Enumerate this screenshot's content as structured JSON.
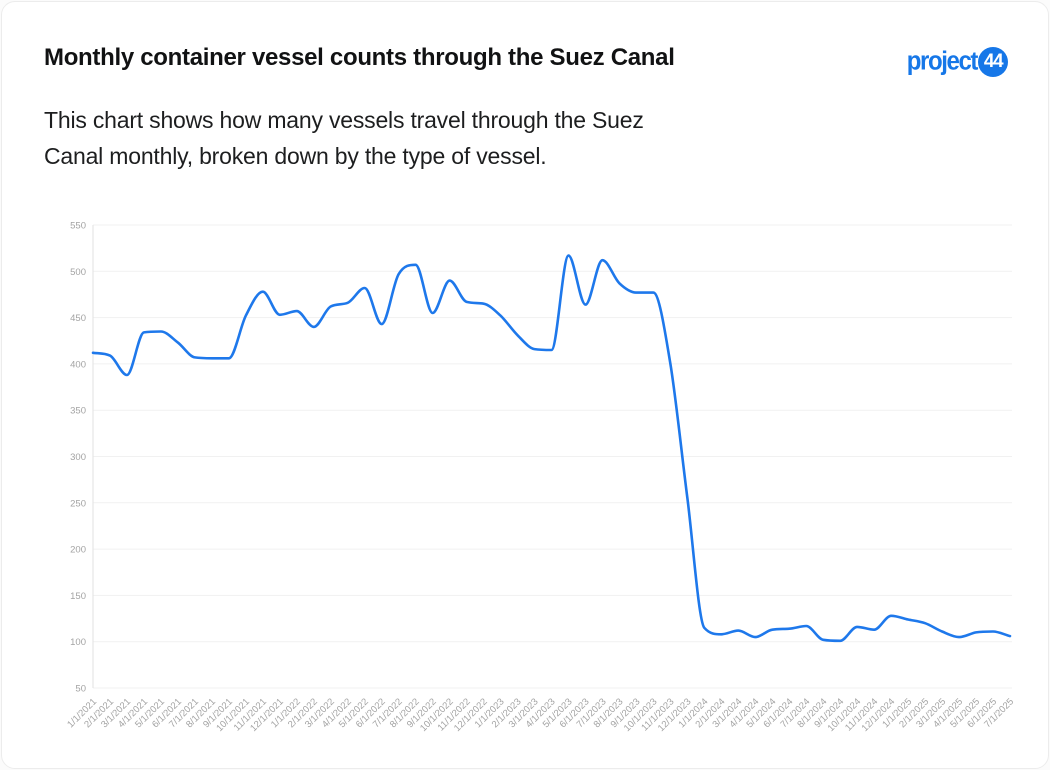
{
  "header": {
    "title": "Monthly container vessel counts through the Suez Canal",
    "subtitle": "This chart shows how many vessels travel through the Suez Canal monthly, broken down by the type of vessel.",
    "subtitle_lines": [
      "This chart shows how many vessels travel through the Suez",
      "Canal monthly, broken down by the type of vessel."
    ],
    "logo": {
      "wordmark": "project",
      "badge": "44",
      "brand_color": "#1677e8"
    }
  },
  "chart_data": {
    "type": "line",
    "title": "Monthly container vessel counts through the Suez Canal",
    "xlabel": "",
    "ylabel": "",
    "legend": "none",
    "grid": "horizontal",
    "ylim": [
      50,
      550
    ],
    "yticks": [
      50,
      100,
      150,
      200,
      250,
      300,
      350,
      400,
      450,
      500,
      550
    ],
    "line_color": "#1e78eb",
    "grid_color": "#f1f1f1",
    "axis_color": "#e2e2e2",
    "tick_label_color": "#a3a3a3",
    "x": [
      "1/1/2021",
      "2/1/2021",
      "3/1/2021",
      "4/1/2021",
      "5/1/2021",
      "6/1/2021",
      "7/1/2021",
      "8/1/2021",
      "9/1/2021",
      "10/1/2021",
      "11/1/2021",
      "12/1/2021",
      "1/1/2022",
      "2/1/2022",
      "3/1/2022",
      "4/1/2022",
      "5/1/2022",
      "6/1/2022",
      "7/1/2022",
      "8/1/2022",
      "9/1/2022",
      "10/1/2022",
      "11/1/2022",
      "12/1/2022",
      "1/1/2023",
      "2/1/2023",
      "3/1/2023",
      "4/1/2023",
      "5/1/2023",
      "6/1/2023",
      "7/1/2023",
      "8/1/2023",
      "9/1/2023",
      "10/1/2023",
      "11/1/2023",
      "12/1/2023",
      "1/1/2024",
      "2/1/2024",
      "3/1/2024",
      "4/1/2024",
      "5/1/2024",
      "6/1/2024",
      "7/1/2024",
      "8/1/2024",
      "9/1/2024",
      "10/1/2024",
      "11/1/2024",
      "12/1/2024",
      "1/1/2025",
      "2/1/2025",
      "3/1/2025",
      "4/1/2025",
      "5/1/2025",
      "6/1/2025",
      "7/1/2025"
    ],
    "series": [
      {
        "name": "Container vessels",
        "color": "#1e78eb",
        "values": [
          412,
          409,
          388,
          434,
          435,
          423,
          407,
          406,
          406,
          452,
          478,
          453,
          457,
          440,
          462,
          466,
          482,
          443,
          497,
          507,
          455,
          490,
          467,
          465,
          452,
          431,
          416,
          415,
          517,
          464,
          512,
          487,
          477,
          477,
          400,
          255,
          115,
          108,
          112,
          105,
          113,
          114,
          117,
          102,
          101,
          116,
          113,
          128,
          124,
          120,
          111,
          105,
          110,
          111,
          106
        ]
      }
    ]
  }
}
